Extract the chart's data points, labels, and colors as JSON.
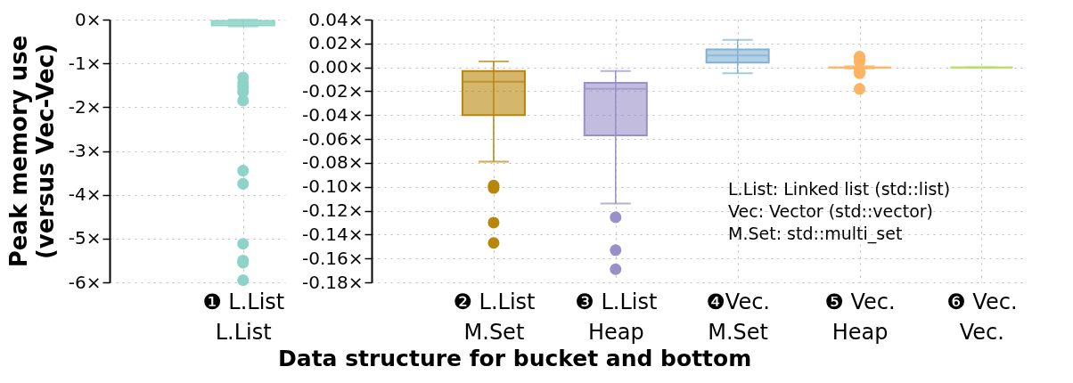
{
  "chart_data": [
    {
      "type": "box",
      "ylabel": "Peak memory use\n(versus Vec-Vec)",
      "categories": [
        "❶ L.List\nL.List"
      ],
      "colors": [
        "#8dd3c7"
      ],
      "boxes": [
        {
          "low": -0.16,
          "q1": -0.13,
          "median": -0.08,
          "q3": -0.03,
          "high": 0,
          "outliers": [
            -1.32,
            -1.45,
            -1.55,
            -1.65,
            -1.85,
            -3.45,
            -3.75,
            -5.12,
            -5.5,
            -5.55,
            -5.95
          ]
        }
      ],
      "ylim": [
        -6,
        0
      ],
      "yticks": [
        {
          "value": 0,
          "label": "0×"
        },
        {
          "value": -1,
          "label": "-1×"
        },
        {
          "value": -2,
          "label": "-2×"
        },
        {
          "value": -3,
          "label": "-3×"
        },
        {
          "value": -4,
          "label": "-4×"
        },
        {
          "value": -5,
          "label": "-5×"
        },
        {
          "value": -6,
          "label": "-6×"
        }
      ],
      "grid": true
    },
    {
      "type": "box",
      "xlabel": "Data structure for bucket and bottom",
      "categories": [
        "❷ L.List\nM.Set",
        "❸ L.List\nHeap",
        "❹Vec.\nM.Set",
        "❺ Vec.\nHeap",
        "❻ Vec.\nVec."
      ],
      "colors": [
        "#b8860b",
        "#9a90c8",
        "#80b1d3",
        "#fdb462",
        "#b3de69"
      ],
      "boxes": [
        {
          "low": -0.079,
          "q1": -0.04,
          "median": -0.012,
          "q3": -0.003,
          "high": 0.005,
          "outliers": [
            -0.099,
            -0.101,
            -0.13,
            -0.147
          ]
        },
        {
          "low": -0.114,
          "q1": -0.057,
          "median": -0.018,
          "q3": -0.013,
          "high": -0.003,
          "outliers": [
            -0.1255,
            -0.153,
            -0.169
          ]
        },
        {
          "low": -0.005,
          "q1": 0.004,
          "median": 0.01,
          "q3": 0.015,
          "high": 0.023
        },
        {
          "low": -0.001,
          "q1": 0,
          "median": 0,
          "q3": 0,
          "high": 0.001,
          "outliers": [
            0.009,
            0.007,
            0.005,
            -0.003,
            -0.005,
            -0.018
          ]
        },
        {
          "low": 0,
          "q1": 0,
          "median": 0,
          "q3": 0,
          "high": 0
        }
      ],
      "ylim": [
        -0.18,
        0.04
      ],
      "yticks": [
        {
          "value": 0.04,
          "label": "0.04×"
        },
        {
          "value": 0.02,
          "label": "0.02×"
        },
        {
          "value": 0,
          "label": "0.00×"
        },
        {
          "value": -0.02,
          "label": "-0.02×"
        },
        {
          "value": -0.04,
          "label": "-0.04×"
        },
        {
          "value": -0.06,
          "label": "-0.06×"
        },
        {
          "value": -0.08,
          "label": "-0.08×"
        },
        {
          "value": -0.1,
          "label": "-0.10×"
        },
        {
          "value": -0.12,
          "label": "-0.12×"
        },
        {
          "value": -0.14,
          "label": "-0.14×"
        },
        {
          "value": -0.16,
          "label": "-0.16×"
        },
        {
          "value": -0.18,
          "label": "-0.18×"
        }
      ],
      "grid": true,
      "annotations": [
        "L.List: Linked list (std::list)",
        "Vec: Vector (std::vector)",
        "M.Set: std::multi_set"
      ]
    }
  ]
}
